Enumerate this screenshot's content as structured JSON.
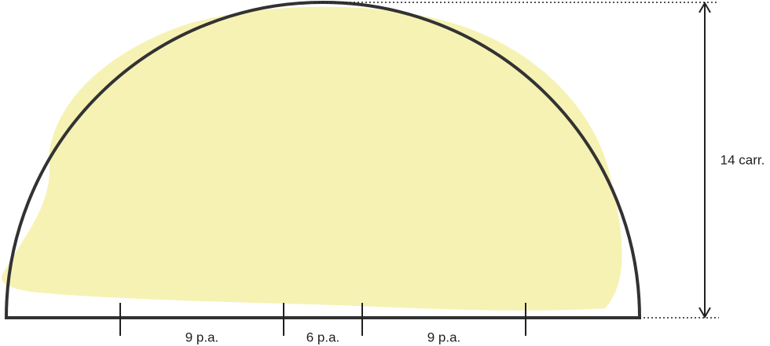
{
  "labels": {
    "bottom": [
      "9 p.a.",
      "6 p.a.",
      "9 p.a."
    ],
    "height": "14 carr."
  }
}
